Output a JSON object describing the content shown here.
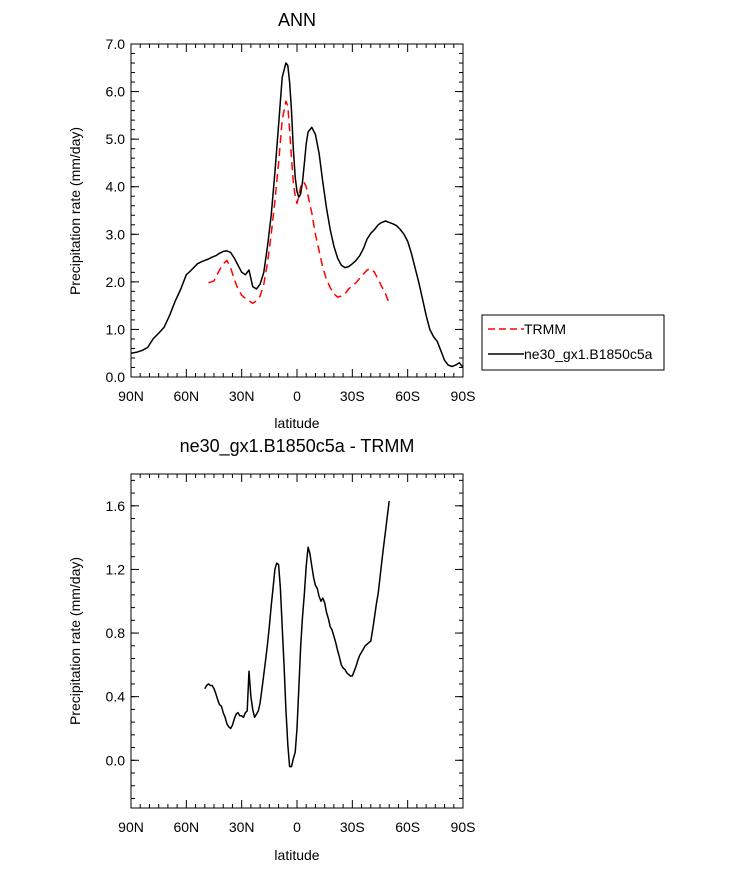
{
  "chart_data": [
    {
      "type": "line",
      "title": "ANN",
      "xlabel": "latitude",
      "ylabel": "Precipitation rate (mm/day)",
      "xlim": [
        90,
        -90
      ],
      "ylim": [
        0,
        7
      ],
      "x_ticks": [
        90,
        60,
        30,
        0,
        -30,
        -60,
        -90
      ],
      "x_tick_labels": [
        "90N",
        "60N",
        "30N",
        "0",
        "30S",
        "60S",
        "90S"
      ],
      "y_ticks": [
        0,
        1,
        2,
        3,
        4,
        5,
        6,
        7
      ],
      "y_tick_labels": [
        "0.0",
        "1.0",
        "2.0",
        "3.0",
        "4.0",
        "5.0",
        "6.0",
        "7.0"
      ],
      "legend_position": "right",
      "series": [
        {
          "name": "TRMM",
          "color": "#ff0000",
          "dash": "dashed",
          "x": [
            48,
            45,
            42,
            40,
            38,
            36,
            34,
            32,
            30,
            28,
            26,
            24,
            22,
            20,
            18,
            16,
            14,
            12,
            10,
            8,
            6,
            5,
            4,
            3,
            2,
            1,
            0,
            -1,
            -2,
            -3,
            -4,
            -5,
            -6,
            -8,
            -10,
            -12,
            -14,
            -16,
            -18,
            -20,
            -22,
            -24,
            -26,
            -28,
            -30,
            -32,
            -35,
            -38,
            -40,
            -42,
            -44,
            -46,
            -48,
            -50
          ],
          "values": [
            1.98,
            2.02,
            2.25,
            2.38,
            2.45,
            2.3,
            2.05,
            1.85,
            1.72,
            1.65,
            1.6,
            1.55,
            1.6,
            1.7,
            1.95,
            2.4,
            3.0,
            3.7,
            4.5,
            5.4,
            5.8,
            5.7,
            5.2,
            4.6,
            4.1,
            3.8,
            3.65,
            3.8,
            4.0,
            4.1,
            4.08,
            4.0,
            3.8,
            3.45,
            3.0,
            2.65,
            2.3,
            2.05,
            1.88,
            1.75,
            1.68,
            1.7,
            1.75,
            1.85,
            1.92,
            1.98,
            2.12,
            2.25,
            2.28,
            2.2,
            2.05,
            1.9,
            1.75,
            1.55
          ]
        },
        {
          "name": "ne30_gx1.B1850c5a",
          "color": "#000000",
          "dash": "solid",
          "x": [
            90,
            87,
            84,
            81,
            78,
            75,
            72,
            69,
            66,
            63,
            60,
            58,
            56,
            54,
            52,
            50,
            48,
            46,
            44,
            42,
            40,
            38,
            36,
            34,
            32,
            30,
            28,
            26,
            24,
            22,
            20,
            18,
            16,
            14,
            12,
            10,
            8,
            6,
            5,
            4,
            3,
            2,
            1,
            0,
            -1,
            -2,
            -3,
            -4,
            -5,
            -6,
            -8,
            -10,
            -12,
            -14,
            -16,
            -18,
            -20,
            -22,
            -24,
            -26,
            -28,
            -30,
            -32,
            -34,
            -36,
            -38,
            -40,
            -42,
            -44,
            -46,
            -48,
            -50,
            -52,
            -54,
            -56,
            -58,
            -60,
            -62,
            -64,
            -66,
            -68,
            -70,
            -72,
            -74,
            -76,
            -78,
            -80,
            -82,
            -84,
            -86,
            -88,
            -90
          ],
          "values": [
            0.5,
            0.52,
            0.56,
            0.62,
            0.8,
            0.92,
            1.05,
            1.3,
            1.6,
            1.85,
            2.15,
            2.22,
            2.3,
            2.38,
            2.42,
            2.45,
            2.48,
            2.52,
            2.55,
            2.6,
            2.64,
            2.65,
            2.62,
            2.5,
            2.35,
            2.2,
            2.15,
            2.25,
            1.9,
            1.85,
            1.95,
            2.2,
            2.75,
            3.4,
            4.3,
            5.3,
            6.3,
            6.6,
            6.55,
            6.2,
            5.6,
            4.8,
            4.2,
            3.9,
            3.78,
            3.85,
            4.1,
            4.5,
            4.9,
            5.15,
            5.25,
            5.1,
            4.7,
            4.1,
            3.55,
            3.1,
            2.75,
            2.5,
            2.35,
            2.3,
            2.32,
            2.38,
            2.45,
            2.55,
            2.7,
            2.9,
            3.02,
            3.1,
            3.2,
            3.25,
            3.28,
            3.25,
            3.22,
            3.18,
            3.1,
            3.0,
            2.85,
            2.6,
            2.3,
            2.0,
            1.65,
            1.3,
            1.0,
            0.85,
            0.75,
            0.55,
            0.35,
            0.25,
            0.22,
            0.25,
            0.3,
            0.2
          ]
        }
      ]
    },
    {
      "type": "line",
      "title": "ne30_gx1.B1850c5a - TRMM",
      "xlabel": "latitude",
      "ylabel": "Precipitation rate (mm/day)",
      "xlim": [
        90,
        -90
      ],
      "ylim": [
        -0.3,
        1.8
      ],
      "x_ticks": [
        90,
        60,
        30,
        0,
        -30,
        -60,
        -90
      ],
      "x_tick_labels": [
        "90N",
        "60N",
        "30N",
        "0",
        "30S",
        "60S",
        "90S"
      ],
      "y_ticks": [
        0,
        0.4,
        0.8,
        1.2,
        1.6
      ],
      "y_tick_labels": [
        "0.0",
        "0.4",
        "0.8",
        "1.2",
        "1.6"
      ],
      "series": [
        {
          "name": "ne30_gx1.B1850c5a - TRMM",
          "color": "#000000",
          "dash": "solid",
          "x": [
            50,
            49,
            48,
            47,
            46,
            45,
            44,
            43,
            42,
            41,
            40,
            39,
            38,
            37,
            36,
            35,
            34,
            33,
            32,
            31,
            30,
            29,
            28,
            27,
            26,
            25,
            24,
            23,
            22,
            21,
            20,
            19,
            18,
            17,
            16,
            15,
            14,
            13,
            12,
            11,
            10,
            9,
            8,
            7,
            6,
            5,
            4,
            3,
            2,
            1,
            0,
            -1,
            -2,
            -3,
            -4,
            -5,
            -6,
            -7,
            -8,
            -9,
            -10,
            -11,
            -12,
            -13,
            -14,
            -15,
            -16,
            -17,
            -18,
            -19,
            -20,
            -21,
            -22,
            -23,
            -24,
            -25,
            -26,
            -27,
            -28,
            -29,
            -30,
            -31,
            -32,
            -33,
            -34,
            -35,
            -36,
            -37,
            -38,
            -39,
            -40,
            -41,
            -42,
            -43,
            -44,
            -45,
            -46,
            -47,
            -48,
            -49,
            -50
          ],
          "values": [
            0.45,
            0.47,
            0.48,
            0.47,
            0.47,
            0.45,
            0.42,
            0.38,
            0.35,
            0.34,
            0.3,
            0.27,
            0.23,
            0.21,
            0.2,
            0.22,
            0.26,
            0.29,
            0.3,
            0.28,
            0.28,
            0.27,
            0.3,
            0.31,
            0.56,
            0.4,
            0.32,
            0.27,
            0.29,
            0.31,
            0.36,
            0.45,
            0.54,
            0.63,
            0.73,
            0.84,
            0.97,
            1.08,
            1.2,
            1.24,
            1.23,
            1.08,
            0.84,
            0.59,
            0.32,
            0.1,
            -0.04,
            -0.04,
            0.01,
            0.05,
            0.2,
            0.45,
            0.72,
            0.9,
            1.05,
            1.22,
            1.34,
            1.3,
            1.22,
            1.15,
            1.1,
            1.08,
            1.03,
            1.0,
            1.02,
            0.99,
            0.93,
            0.89,
            0.84,
            0.82,
            0.78,
            0.74,
            0.69,
            0.65,
            0.6,
            0.58,
            0.57,
            0.55,
            0.54,
            0.53,
            0.53,
            0.56,
            0.59,
            0.63,
            0.66,
            0.68,
            0.7,
            0.72,
            0.73,
            0.74,
            0.75,
            0.82,
            0.9,
            0.98,
            1.05,
            1.15,
            1.25,
            1.35,
            1.44,
            1.54,
            1.63
          ]
        }
      ]
    }
  ]
}
